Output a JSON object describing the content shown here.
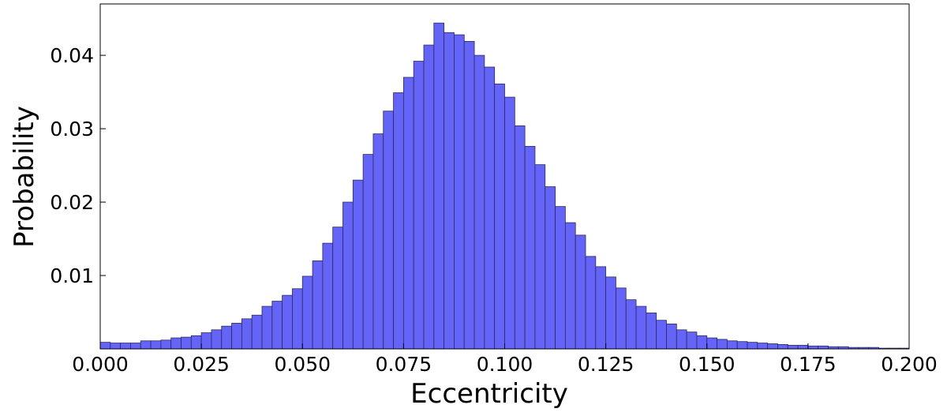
{
  "chart_data": {
    "type": "histogram",
    "x_label": "Eccentricity",
    "y_label": "Probability",
    "bins": [
      0,
      0.0025,
      0.005,
      0.0075,
      0.01,
      0.0125,
      0.015,
      0.0175,
      0.02,
      0.0225,
      0.025,
      0.0275,
      0.03,
      0.0325,
      0.035,
      0.0375,
      0.04,
      0.0425,
      0.045,
      0.0475,
      0.05,
      0.0525,
      0.055,
      0.0575,
      0.06,
      0.0625,
      0.065,
      0.0675,
      0.07,
      0.0725,
      0.075,
      0.0775,
      0.08,
      0.0825,
      0.085,
      0.0875,
      0.09,
      0.0925,
      0.095,
      0.0975,
      0.1,
      0.1025,
      0.105,
      0.1075,
      0.11,
      0.1125,
      0.115,
      0.1175,
      0.12,
      0.1225,
      0.125,
      0.1275,
      0.13,
      0.1325,
      0.135,
      0.1375,
      0.14,
      0.1425,
      0.145,
      0.1475,
      0.15,
      0.1525,
      0.155,
      0.1575,
      0.16,
      0.1625,
      0.165,
      0.1675,
      0.17,
      0.1725,
      0.175,
      0.1775,
      0.18,
      0.1825,
      0.185,
      0.1875,
      0.19,
      0.1925,
      0.195,
      0.1975,
      0.2
    ],
    "values": [
      0.0009,
      0.0008,
      0.0008,
      0.0008,
      0.0011,
      0.0011,
      0.0012,
      0.0015,
      0.0016,
      0.0018,
      0.0022,
      0.0026,
      0.0031,
      0.0035,
      0.0041,
      0.0046,
      0.0058,
      0.0065,
      0.0073,
      0.0082,
      0.0099,
      0.012,
      0.0144,
      0.0166,
      0.02,
      0.023,
      0.0265,
      0.0293,
      0.0324,
      0.0349,
      0.037,
      0.0392,
      0.0414,
      0.0444,
      0.0431,
      0.0428,
      0.0419,
      0.04,
      0.0384,
      0.0361,
      0.0343,
      0.0304,
      0.0276,
      0.0251,
      0.0221,
      0.0194,
      0.0172,
      0.0155,
      0.0126,
      0.0112,
      0.0098,
      0.0083,
      0.0067,
      0.0058,
      0.0049,
      0.0039,
      0.0034,
      0.0026,
      0.0023,
      0.0018,
      0.0015,
      0.0013,
      0.0011,
      0.001,
      0.0009,
      0.0008,
      0.0007,
      0.0006,
      0.0005,
      0.0005,
      0.0004,
      0.0004,
      0.0003,
      0.0003,
      0.0002,
      0.0002,
      0.0002,
      0.0001,
      0.0001,
      0.0001
    ],
    "color": "#6464f8",
    "xlim": [
      0,
      0.2
    ],
    "ylim": [
      0,
      0.047
    ],
    "xticks": [
      {
        "value": 0,
        "label": "0.000"
      },
      {
        "value": 0.025,
        "label": "0.025"
      },
      {
        "value": 0.05,
        "label": "0.050"
      },
      {
        "value": 0.075,
        "label": "0.075"
      },
      {
        "value": 0.1,
        "label": "0.100"
      },
      {
        "value": 0.125,
        "label": "0.125"
      },
      {
        "value": 0.15,
        "label": "0.150"
      },
      {
        "value": 0.175,
        "label": "0.175"
      },
      {
        "value": 0.2,
        "label": "0.200"
      }
    ],
    "yticks": [
      0.01,
      0.02,
      0.03,
      0.04
    ],
    "grid": false
  }
}
